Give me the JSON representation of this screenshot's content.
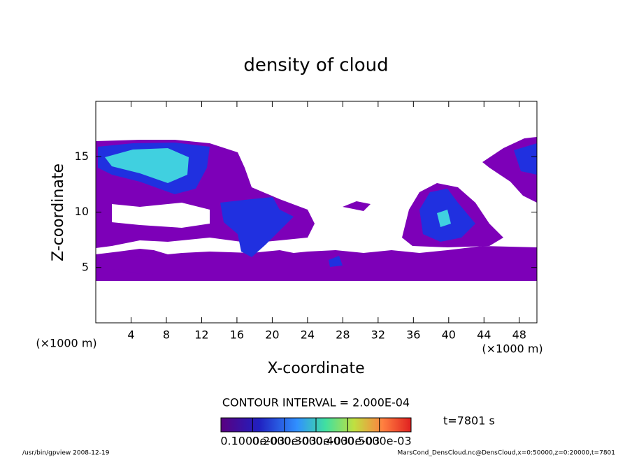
{
  "chart_data": {
    "type": "contour",
    "title": "density of cloud",
    "xlabel": "X-coordinate",
    "ylabel": "Z-coordinate",
    "xunit_left": "(×1000 m)",
    "xunit_right": "(×1000 m)",
    "xlim": [
      0,
      50
    ],
    "xticks": [
      4,
      8,
      12,
      16,
      20,
      24,
      28,
      32,
      36,
      40,
      44,
      48
    ],
    "ylim": [
      0,
      20
    ],
    "yticks": [
      5,
      10,
      15
    ],
    "contour_interval": "CONTOUR INTERVAL = 2.000E-04",
    "time_label": "t=7801 s",
    "colorbar_ticks": [
      {
        "value": 0.0001,
        "label": "0.1000e-03"
      },
      {
        "value": 0.0002,
        "label": "0.2000e-03"
      },
      {
        "value": 0.0003,
        "label": "0.3000e-03"
      },
      {
        "value": 0.0004,
        "label": "0.4000e-03"
      },
      {
        "value": 0.0005,
        "label": "0.5000e-03"
      }
    ],
    "colorbar_lim": [
      0,
      0.0006
    ],
    "footer_left": "/usr/bin/gpview   2008-12-19",
    "footer_right": "MarsCond_DensCloud.nc@DensCloud,x=0:50000,z=0:20000,t=7801"
  }
}
